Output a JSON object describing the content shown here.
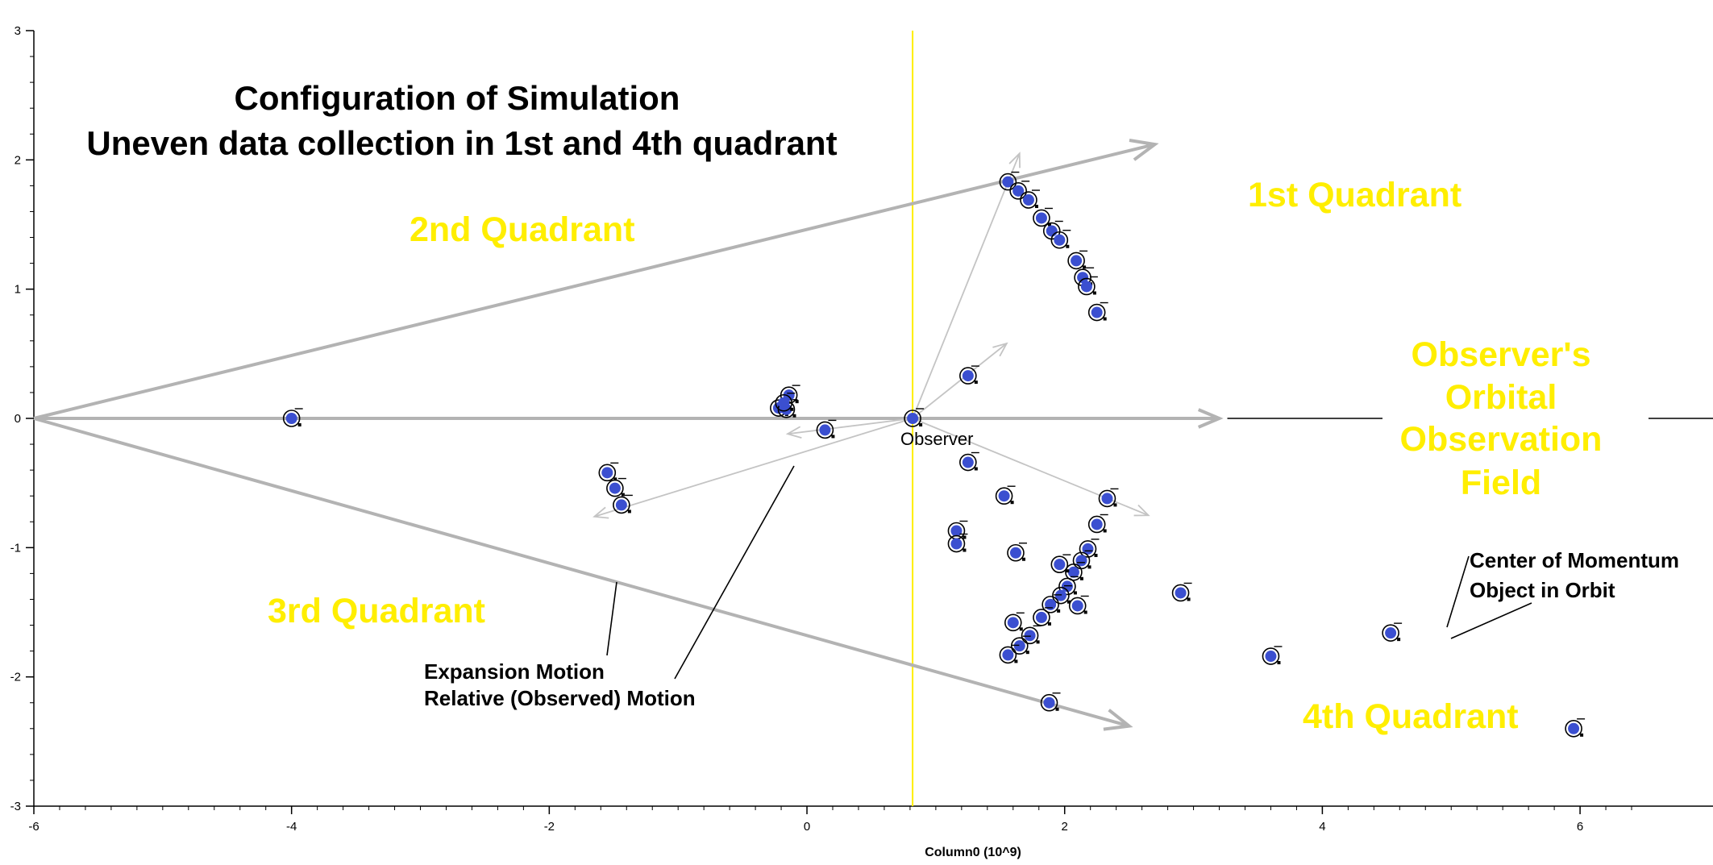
{
  "chart_data": {
    "type": "scatter",
    "title": [
      "Configuration of Simulation",
      "Uneven data collection in 1st and 4th quadrant"
    ],
    "xlabel": "Column0 (10^9)",
    "ylabel": "",
    "xlim": [
      -6,
      6.5
    ],
    "ylim": [
      -3,
      3
    ],
    "xticks": [
      -6,
      -4,
      -2,
      0,
      2,
      4,
      6
    ],
    "yticks": [
      -3,
      -2,
      -1,
      0,
      1,
      2,
      3
    ],
    "xtick_labels": [
      "-6",
      "-4",
      "-2",
      "0",
      "2",
      "4",
      "6"
    ],
    "ytick_labels": [
      "-3",
      "-2",
      "-1",
      "0",
      "1",
      "2",
      "3"
    ],
    "grid": false,
    "point_color": "#3b4fd0",
    "observer_line_color": "#ffee00",
    "observer_line_x": 0.82,
    "series": [
      {
        "points": [
          {
            "x": -4.0,
            "y": 0.0
          },
          {
            "x": -0.22,
            "y": 0.08
          },
          {
            "x": -0.16,
            "y": 0.07
          },
          {
            "x": -0.14,
            "y": 0.18
          },
          {
            "x": -0.18,
            "y": 0.12
          },
          {
            "x": 0.14,
            "y": -0.09
          },
          {
            "x": 0.82,
            "y": 0.0
          },
          {
            "x": -1.55,
            "y": -0.42
          },
          {
            "x": -1.49,
            "y": -0.54
          },
          {
            "x": -1.44,
            "y": -0.67
          },
          {
            "x": 1.25,
            "y": 0.33
          },
          {
            "x": 1.56,
            "y": 1.83
          },
          {
            "x": 1.64,
            "y": 1.76
          },
          {
            "x": 1.72,
            "y": 1.69
          },
          {
            "x": 1.82,
            "y": 1.55
          },
          {
            "x": 1.9,
            "y": 1.45
          },
          {
            "x": 1.96,
            "y": 1.38
          },
          {
            "x": 2.09,
            "y": 1.22
          },
          {
            "x": 2.14,
            "y": 1.09
          },
          {
            "x": 2.17,
            "y": 1.02
          },
          {
            "x": 2.25,
            "y": 0.82
          },
          {
            "x": 1.25,
            "y": -0.34
          },
          {
            "x": 1.53,
            "y": -0.6
          },
          {
            "x": 2.33,
            "y": -0.62
          },
          {
            "x": 1.16,
            "y": -0.87
          },
          {
            "x": 1.16,
            "y": -0.97
          },
          {
            "x": 1.62,
            "y": -1.04
          },
          {
            "x": 2.25,
            "y": -0.82
          },
          {
            "x": 2.18,
            "y": -1.01
          },
          {
            "x": 2.13,
            "y": -1.1
          },
          {
            "x": 2.07,
            "y": -1.19
          },
          {
            "x": 1.96,
            "y": -1.13
          },
          {
            "x": 2.02,
            "y": -1.3
          },
          {
            "x": 1.97,
            "y": -1.37
          },
          {
            "x": 1.89,
            "y": -1.44
          },
          {
            "x": 2.1,
            "y": -1.45
          },
          {
            "x": 1.82,
            "y": -1.54
          },
          {
            "x": 1.6,
            "y": -1.58
          },
          {
            "x": 1.73,
            "y": -1.68
          },
          {
            "x": 1.65,
            "y": -1.76
          },
          {
            "x": 1.56,
            "y": -1.83
          },
          {
            "x": 1.88,
            "y": -2.2
          },
          {
            "x": 2.9,
            "y": -1.35
          },
          {
            "x": 4.53,
            "y": -1.66
          },
          {
            "x": 3.6,
            "y": -1.84
          },
          {
            "x": 5.95,
            "y": -2.4
          }
        ]
      }
    ],
    "annotations": {
      "quadrants": [
        "1st Quadrant",
        "2nd Quadrant",
        "3rd Quadrant",
        "4th Quadrant"
      ],
      "field": [
        "Observer's",
        "Orbital",
        "Observation",
        "Field"
      ],
      "observer": "Observer",
      "motion": [
        "Expansion Motion",
        "Relative (Observed) Motion"
      ],
      "center": [
        "Center of Momentum",
        "Object in Orbit"
      ]
    }
  }
}
